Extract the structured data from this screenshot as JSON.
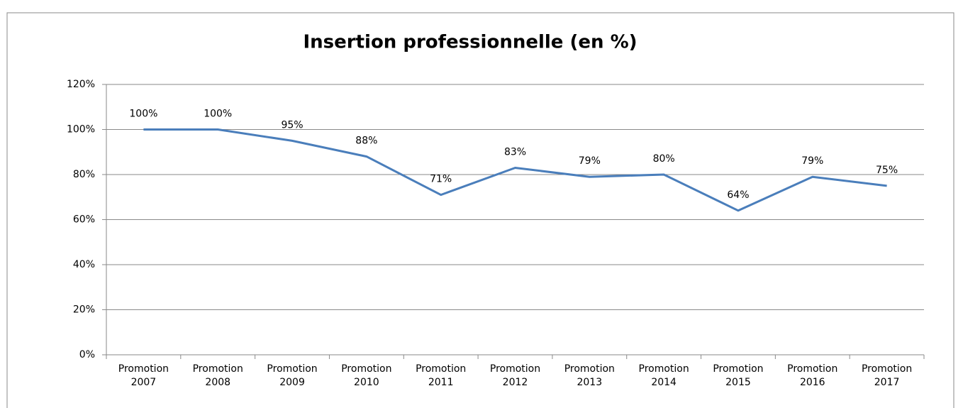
{
  "chart_data": {
    "type": "line",
    "title": "Insertion professionnelle  (en %)",
    "categories": [
      "Promotion 2007",
      "Promotion 2008",
      "Promotion 2009",
      "Promotion 2010",
      "Promotion 2011",
      "Promotion 2012",
      "Promotion 2013",
      "Promotion 2014",
      "Promotion 2015",
      "Promotion 2016",
      "Promotion 2017"
    ],
    "values": [
      100,
      100,
      95,
      88,
      71,
      83,
      79,
      80,
      64,
      79,
      75
    ],
    "value_labels": [
      "100%",
      "100%",
      "95%",
      "88%",
      "71%",
      "83%",
      "79%",
      "80%",
      "64%",
      "79%",
      "75%"
    ],
    "color": "#4a7ebb",
    "ylim": [
      0,
      120
    ],
    "yticks": [
      {
        "value": 0,
        "label": "0%"
      },
      {
        "value": 20,
        "label": "20%"
      },
      {
        "value": 40,
        "label": "40%"
      },
      {
        "value": 60,
        "label": "60%"
      },
      {
        "value": 80,
        "label": "80%"
      },
      {
        "value": 100,
        "label": "100%"
      },
      {
        "value": 120,
        "label": "120%"
      }
    ],
    "grid": true
  }
}
